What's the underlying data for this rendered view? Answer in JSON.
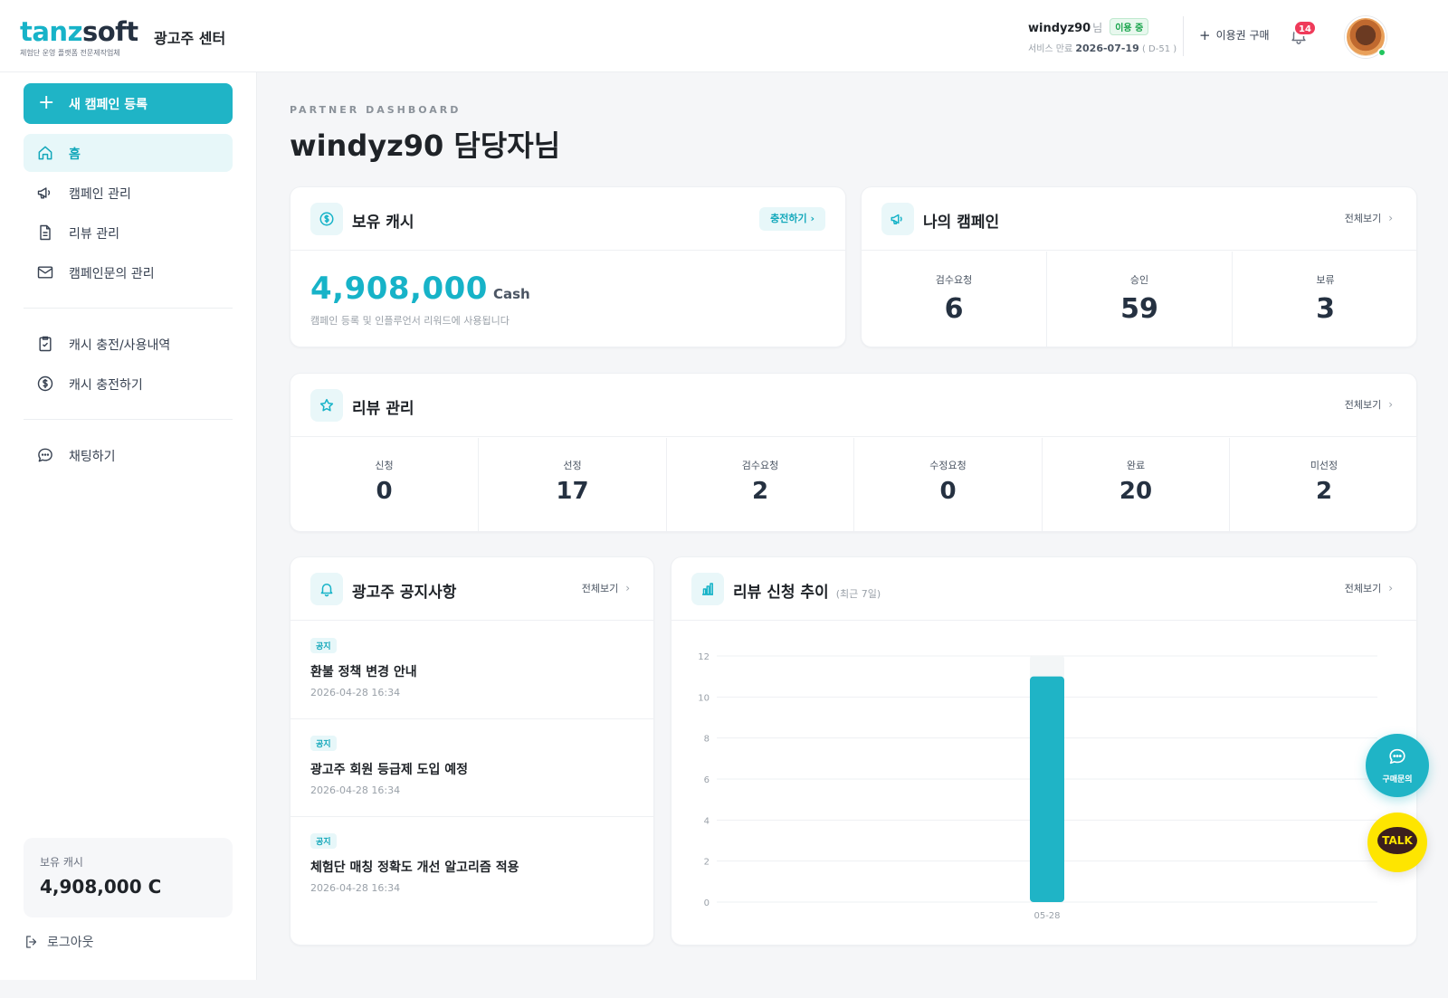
{
  "brand": {
    "logo_part1": "tanz",
    "logo_part2": "soft",
    "tagline": "체험단 운영 플랫폼 전문제작업체",
    "center_title": "광고주 센터",
    "accent_color": "#17b3c8"
  },
  "header": {
    "username": "windyz90",
    "username_suffix": "님",
    "status_badge": "이용 중",
    "expire_label": "서비스 만료",
    "expire_date": "2026-07-19",
    "expire_dday": "( D-51 )",
    "buy_button": "이용권 구매",
    "notification_count": "14"
  },
  "sidebar": {
    "new_campaign": "새 캠페인 등록",
    "items": [
      {
        "label": "홈",
        "icon": "home-icon"
      },
      {
        "label": "캠페인 관리",
        "icon": "megaphone-icon"
      },
      {
        "label": "리뷰 관리",
        "icon": "document-icon"
      },
      {
        "label": "캠페인문의 관리",
        "icon": "mail-icon"
      },
      {
        "label": "캐시 충전/사용내역",
        "icon": "clipboard-check-icon"
      },
      {
        "label": "캐시 충전하기",
        "icon": "dollar-icon"
      },
      {
        "label": "채팅하기",
        "icon": "chat-icon"
      }
    ],
    "cash_label": "보유 캐시",
    "cash_value": "4,908,000 C",
    "logout": "로그아웃"
  },
  "main": {
    "eyebrow": "PARTNER DASHBOARD",
    "title": "windyz90 담당자님"
  },
  "cash_card": {
    "title": "보유 캐시",
    "charge_link": "충전하기",
    "amount": "4,908,000",
    "unit": "Cash",
    "description": "캠페인 등록 및 인플루언서 리워드에 사용됩니다"
  },
  "campaign_card": {
    "title": "나의 캠페인",
    "view_all": "전체보기",
    "stats": [
      {
        "label": "검수요청",
        "value": "6"
      },
      {
        "label": "승인",
        "value": "59"
      },
      {
        "label": "보류",
        "value": "3"
      }
    ]
  },
  "review_card": {
    "title": "리뷰 관리",
    "view_all": "전체보기",
    "stats": [
      {
        "label": "신청",
        "value": "0"
      },
      {
        "label": "선정",
        "value": "17"
      },
      {
        "label": "검수요청",
        "value": "2"
      },
      {
        "label": "수정요청",
        "value": "0"
      },
      {
        "label": "완료",
        "value": "20"
      },
      {
        "label": "미선정",
        "value": "2"
      }
    ]
  },
  "notice_card": {
    "title": "광고주 공지사항",
    "view_all": "전체보기",
    "items": [
      {
        "tag": "공지",
        "title": "환불 정책 변경 안내",
        "date": "2026-04-28 16:34"
      },
      {
        "tag": "공지",
        "title": "광고주 회원 등급제 도입 예정",
        "date": "2026-04-28 16:34"
      },
      {
        "tag": "공지",
        "title": "체험단 매칭 정확도 개선 알고리즘 적용",
        "date": "2026-04-28 16:34"
      }
    ]
  },
  "trend_card": {
    "title": "리뷰 신청 추이",
    "subtitle": "(최근 7일)",
    "view_all": "전체보기"
  },
  "chart_data": {
    "type": "bar",
    "categories": [
      "05-28"
    ],
    "values": [
      11
    ],
    "ylim": [
      0,
      12
    ],
    "yticks": [
      0,
      2,
      4,
      6,
      8,
      10,
      12
    ],
    "grid": true,
    "bar_color": "#1fb4c6"
  },
  "floating": {
    "inquiry_label": "구매문의",
    "talk_label": "TALK"
  }
}
